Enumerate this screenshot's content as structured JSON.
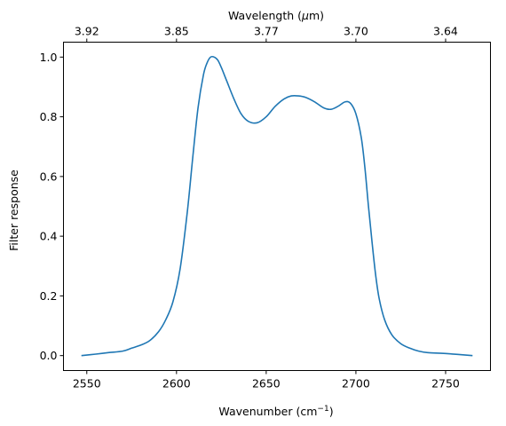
{
  "chart_data": {
    "type": "line",
    "xlabel": "Wavenumber (cm",
    "xlabel_sup": "−1",
    "xlabel_end": ")",
    "ylabel": "Filter response",
    "top_xlabel": "Wavelength (",
    "top_xlabel_mu": "μ",
    "top_xlabel_end": "m)",
    "xlim": [
      2537,
      2775
    ],
    "ylim": [
      -0.05,
      1.05
    ],
    "x_ticks": [
      "2550",
      "2600",
      "2650",
      "2700",
      "2750"
    ],
    "x_tick_values": [
      2550,
      2600,
      2650,
      2700,
      2750
    ],
    "y_ticks": [
      "0.0",
      "0.2",
      "0.4",
      "0.6",
      "0.8",
      "1.0"
    ],
    "y_tick_values": [
      0.0,
      0.2,
      0.4,
      0.6,
      0.8,
      1.0
    ],
    "top_ticks": [
      "3.92",
      "3.85",
      "3.77",
      "3.70",
      "3.64"
    ],
    "top_tick_wavenumbers": [
      2550,
      2600,
      2650,
      2700,
      2750
    ],
    "grid": false,
    "series": [
      {
        "color": "#1f77b4",
        "x": [
          2547,
          2555,
          2562,
          2570,
          2575,
          2580,
          2585,
          2590,
          2594,
          2598,
          2602,
          2606,
          2609,
          2612,
          2615,
          2617,
          2619,
          2621,
          2623,
          2625,
          2628,
          2632,
          2636,
          2640,
          2645,
          2650,
          2655,
          2660,
          2664,
          2668,
          2672,
          2677,
          2682,
          2686,
          2690,
          2694,
          2697,
          2700,
          2703,
          2705,
          2707,
          2709,
          2711,
          2713,
          2716,
          2720,
          2725,
          2730,
          2735,
          2740,
          2750,
          2765
        ],
        "y": [
          0.0,
          0.005,
          0.01,
          0.015,
          0.025,
          0.035,
          0.05,
          0.08,
          0.12,
          0.18,
          0.29,
          0.48,
          0.66,
          0.83,
          0.94,
          0.98,
          1.0,
          1.0,
          0.99,
          0.965,
          0.92,
          0.86,
          0.81,
          0.785,
          0.78,
          0.8,
          0.835,
          0.86,
          0.87,
          0.87,
          0.865,
          0.85,
          0.83,
          0.825,
          0.835,
          0.85,
          0.845,
          0.81,
          0.73,
          0.63,
          0.5,
          0.38,
          0.27,
          0.19,
          0.12,
          0.07,
          0.04,
          0.025,
          0.015,
          0.01,
          0.007,
          0.0
        ]
      }
    ]
  }
}
